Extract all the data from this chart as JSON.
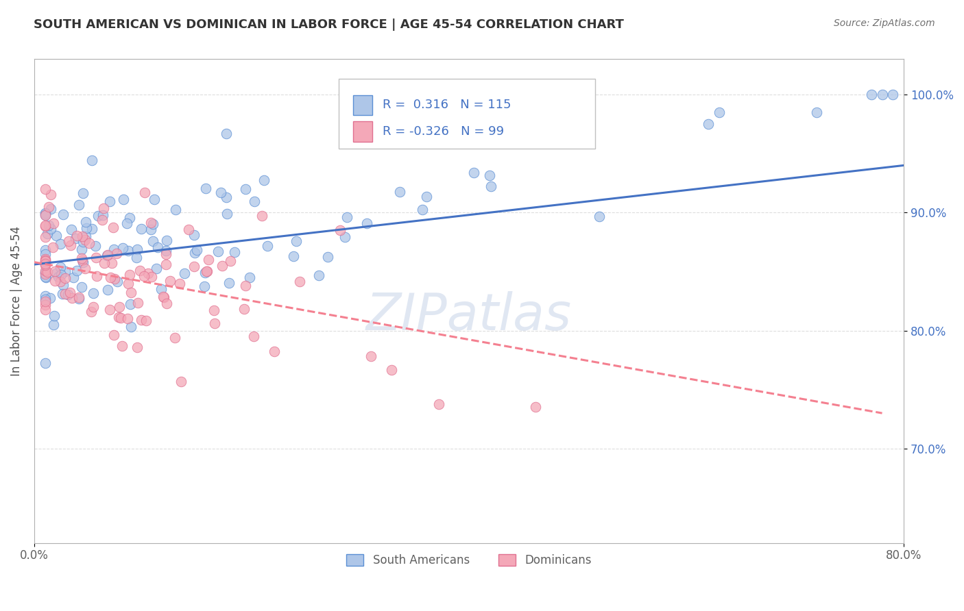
{
  "title": "SOUTH AMERICAN VS DOMINICAN IN LABOR FORCE | AGE 45-54 CORRELATION CHART",
  "source": "Source: ZipAtlas.com",
  "ylabel": "In Labor Force | Age 45-54",
  "xlim": [
    0.0,
    0.8
  ],
  "ylim": [
    0.62,
    1.03
  ],
  "ytick_labels": [
    "70.0%",
    "80.0%",
    "90.0%",
    "100.0%"
  ],
  "ytick_values": [
    0.7,
    0.8,
    0.9,
    1.0
  ],
  "blue_R": "0.316",
  "blue_N": "115",
  "pink_R": "-0.326",
  "pink_N": "99",
  "blue_color": "#aec6e8",
  "pink_color": "#f4a8b8",
  "blue_edge_color": "#5b8fd4",
  "pink_edge_color": "#e07090",
  "blue_line_color": "#4472c4",
  "pink_line_color": "#f48090",
  "legend_label_blue": "South Americans",
  "legend_label_pink": "Dominicans",
  "background_color": "#ffffff",
  "grid_color": "#dddddd",
  "title_color": "#333333",
  "text_color_blue": "#4472c4",
  "blue_trendline_x": [
    0.0,
    0.8
  ],
  "blue_trendline_y": [
    0.856,
    0.94
  ],
  "pink_trendline_x": [
    0.0,
    0.78
  ],
  "pink_trendline_y": [
    0.858,
    0.73
  ]
}
